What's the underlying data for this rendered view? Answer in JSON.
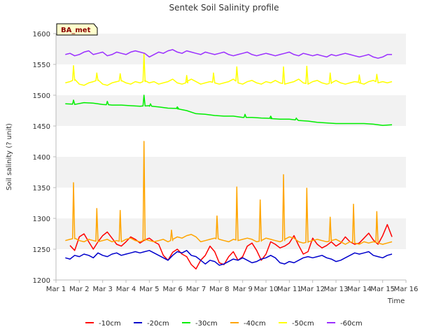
{
  "chart_data": {
    "type": "line",
    "title": "Sentek Soil Salinity profile",
    "xlabel": "Time",
    "ylabel": "Soil salinity (? unit)",
    "badge": "BA_met",
    "ylim": [
      1200,
      1600
    ],
    "yticks": [
      1200,
      1250,
      1300,
      1350,
      1400,
      1450,
      1500,
      1550,
      1600
    ],
    "xlim": [
      1,
      16
    ],
    "xticks": [
      1,
      2,
      3,
      4,
      5,
      6,
      7,
      8,
      9,
      10,
      11,
      12,
      13,
      14,
      15,
      16
    ],
    "xtick_labels": [
      "Mar 1",
      "Mar 2",
      "Mar 3",
      "Mar 4",
      "Mar 5",
      "Mar 6",
      "Mar 7",
      "Mar 8",
      "Mar 9",
      "Mar 10",
      "Mar 11",
      "Mar 12",
      "Mar 13",
      "Mar 14",
      "Mar 15",
      "Mar 16"
    ],
    "grid": "horizontal bands",
    "legend_position": "bottom",
    "series": [
      {
        "name": "-10cm",
        "color": "#ff0000",
        "x": [
          1.6,
          1.8,
          2.0,
          2.2,
          2.4,
          2.6,
          2.8,
          3.0,
          3.2,
          3.4,
          3.6,
          3.8,
          4.0,
          4.2,
          4.4,
          4.6,
          4.8,
          5.0,
          5.2,
          5.4,
          5.6,
          5.8,
          6.0,
          6.2,
          6.4,
          6.6,
          6.8,
          7.0,
          7.2,
          7.4,
          7.6,
          7.8,
          8.0,
          8.2,
          8.4,
          8.6,
          8.8,
          9.0,
          9.2,
          9.4,
          9.6,
          9.8,
          10.0,
          10.2,
          10.4,
          10.6,
          10.8,
          11.0,
          11.2,
          11.4,
          11.6,
          11.8,
          12.0,
          12.2,
          12.4,
          12.6,
          12.8,
          13.0,
          13.2,
          13.4,
          13.6,
          13.8,
          14.0,
          14.2,
          14.4,
          14.6,
          14.8,
          15.0,
          15.2,
          15.4
        ],
        "y": [
          1256,
          1248,
          1270,
          1275,
          1262,
          1250,
          1262,
          1272,
          1278,
          1268,
          1258,
          1255,
          1262,
          1270,
          1266,
          1260,
          1265,
          1268,
          1262,
          1258,
          1240,
          1232,
          1245,
          1250,
          1242,
          1238,
          1225,
          1218,
          1232,
          1240,
          1255,
          1246,
          1228,
          1225,
          1238,
          1246,
          1232,
          1238,
          1255,
          1260,
          1248,
          1232,
          1242,
          1262,
          1258,
          1252,
          1255,
          1260,
          1272,
          1256,
          1242,
          1246,
          1268,
          1258,
          1252,
          1256,
          1262,
          1255,
          1260,
          1270,
          1262,
          1258,
          1260,
          1268,
          1276,
          1265,
          1258,
          1272,
          1290,
          1270
        ],
        "spikes": []
      },
      {
        "name": "-20cm",
        "color": "#0000cc",
        "x": [
          1.4,
          1.6,
          1.8,
          2.0,
          2.2,
          2.4,
          2.6,
          2.8,
          3.0,
          3.2,
          3.4,
          3.6,
          3.8,
          4.0,
          4.2,
          4.4,
          4.6,
          4.8,
          5.0,
          5.2,
          5.4,
          5.6,
          5.8,
          6.0,
          6.2,
          6.4,
          6.6,
          6.8,
          7.0,
          7.2,
          7.4,
          7.6,
          7.8,
          8.0,
          8.2,
          8.4,
          8.6,
          8.8,
          9.0,
          9.2,
          9.4,
          9.6,
          9.8,
          10.0,
          10.2,
          10.4,
          10.6,
          10.8,
          11.0,
          11.2,
          11.4,
          11.6,
          11.8,
          12.0,
          12.2,
          12.4,
          12.6,
          12.8,
          13.0,
          13.2,
          13.4,
          13.6,
          13.8,
          14.0,
          14.2,
          14.4,
          14.6,
          14.8,
          15.0,
          15.2,
          15.4
        ],
        "y": [
          1236,
          1234,
          1240,
          1238,
          1242,
          1240,
          1236,
          1244,
          1240,
          1238,
          1242,
          1244,
          1240,
          1242,
          1244,
          1246,
          1244,
          1246,
          1248,
          1244,
          1240,
          1236,
          1232,
          1240,
          1246,
          1244,
          1248,
          1240,
          1238,
          1232,
          1226,
          1232,
          1230,
          1224,
          1226,
          1230,
          1234,
          1232,
          1236,
          1232,
          1228,
          1230,
          1234,
          1236,
          1240,
          1236,
          1228,
          1226,
          1230,
          1228,
          1232,
          1236,
          1238,
          1236,
          1238,
          1240,
          1236,
          1234,
          1230,
          1232,
          1236,
          1240,
          1244,
          1242,
          1244,
          1246,
          1240,
          1238,
          1236,
          1240,
          1242
        ],
        "spikes": []
      },
      {
        "name": "-30cm",
        "color": "#00ee00",
        "x": [
          1.4,
          1.8,
          2.2,
          2.6,
          3.0,
          3.4,
          3.8,
          4.2,
          4.6,
          5.0,
          5.4,
          5.8,
          6.2,
          6.6,
          7.0,
          7.4,
          7.8,
          8.2,
          8.6,
          9.0,
          9.4,
          9.8,
          10.2,
          10.6,
          11.0,
          11.4,
          11.8,
          12.2,
          12.6,
          13.0,
          13.4,
          13.8,
          14.2,
          14.6,
          15.0,
          15.4
        ],
        "y": [
          1486,
          1485,
          1488,
          1487,
          1485,
          1484,
          1484,
          1483,
          1482,
          1483,
          1481,
          1479,
          1478,
          1475,
          1470,
          1469,
          1467,
          1466,
          1466,
          1464,
          1464,
          1463,
          1462,
          1461,
          1461,
          1459,
          1458,
          1456,
          1455,
          1454,
          1454,
          1454,
          1454,
          1453,
          1451,
          1452
        ],
        "spikes": [
          [
            1.75,
            1492
          ],
          [
            3.2,
            1490
          ],
          [
            4.77,
            1500
          ],
          [
            5.05,
            1486
          ],
          [
            6.2,
            1481
          ],
          [
            9.1,
            1469
          ],
          [
            10.2,
            1466
          ],
          [
            11.3,
            1463
          ]
        ]
      },
      {
        "name": "-40cm",
        "color": "#ffa500",
        "x": [
          1.4,
          1.6,
          1.8,
          2.0,
          2.2,
          2.4,
          2.6,
          2.8,
          3.0,
          3.2,
          3.4,
          3.6,
          3.8,
          4.0,
          4.2,
          4.4,
          4.6,
          4.8,
          5.0,
          5.2,
          5.4,
          5.6,
          5.8,
          6.0,
          6.2,
          6.4,
          6.6,
          6.8,
          7.0,
          7.2,
          7.4,
          7.6,
          7.8,
          8.0,
          8.2,
          8.4,
          8.6,
          8.8,
          9.0,
          9.2,
          9.4,
          9.6,
          9.8,
          10.0,
          10.2,
          10.4,
          10.6,
          10.8,
          11.0,
          11.2,
          11.4,
          11.6,
          11.8,
          12.0,
          12.2,
          12.4,
          12.6,
          12.8,
          13.0,
          13.2,
          13.4,
          13.6,
          13.8,
          14.0,
          14.2,
          14.4,
          14.6,
          14.8,
          15.0,
          15.2,
          15.4
        ],
        "y": [
          1264,
          1266,
          1268,
          1264,
          1262,
          1266,
          1264,
          1262,
          1264,
          1266,
          1262,
          1264,
          1262,
          1266,
          1268,
          1264,
          1262,
          1266,
          1264,
          1262,
          1264,
          1266,
          1262,
          1266,
          1270,
          1268,
          1272,
          1274,
          1270,
          1262,
          1264,
          1266,
          1268,
          1266,
          1264,
          1262,
          1266,
          1264,
          1266,
          1268,
          1266,
          1262,
          1264,
          1268,
          1266,
          1264,
          1262,
          1266,
          1270,
          1268,
          1262,
          1260,
          1262,
          1264,
          1266,
          1264,
          1262,
          1264,
          1266,
          1262,
          1258,
          1262,
          1260,
          1258,
          1262,
          1260,
          1262,
          1260,
          1258,
          1260,
          1262
        ],
        "spikes": [
          [
            1.75,
            1358
          ],
          [
            2.75,
            1316
          ],
          [
            3.75,
            1313
          ],
          [
            4.77,
            1425
          ],
          [
            5.95,
            1281
          ],
          [
            7.9,
            1304
          ],
          [
            8.75,
            1351
          ],
          [
            9.75,
            1330
          ],
          [
            10.75,
            1371
          ],
          [
            11.75,
            1349
          ],
          [
            12.75,
            1302
          ],
          [
            13.75,
            1323
          ],
          [
            14.75,
            1311
          ]
        ]
      },
      {
        "name": "-50cm",
        "color": "#ffff00",
        "x": [
          1.4,
          1.6,
          1.8,
          2.0,
          2.2,
          2.4,
          2.6,
          2.8,
          3.0,
          3.2,
          3.4,
          3.6,
          3.8,
          4.0,
          4.2,
          4.4,
          4.6,
          4.8,
          5.0,
          5.2,
          5.4,
          5.6,
          5.8,
          6.0,
          6.2,
          6.4,
          6.6,
          6.8,
          7.0,
          7.2,
          7.4,
          7.6,
          7.8,
          8.0,
          8.2,
          8.4,
          8.6,
          8.8,
          9.0,
          9.2,
          9.4,
          9.6,
          9.8,
          10.0,
          10.2,
          10.4,
          10.6,
          10.8,
          11.0,
          11.2,
          11.4,
          11.6,
          11.8,
          12.0,
          12.2,
          12.4,
          12.6,
          12.8,
          13.0,
          13.2,
          13.4,
          13.6,
          13.8,
          14.0,
          14.2,
          14.4,
          14.6,
          14.8,
          15.0,
          15.2,
          15.4
        ],
        "y": [
          1520,
          1522,
          1526,
          1518,
          1516,
          1520,
          1522,
          1525,
          1518,
          1516,
          1520,
          1522,
          1524,
          1520,
          1518,
          1522,
          1520,
          1524,
          1520,
          1522,
          1518,
          1520,
          1522,
          1526,
          1520,
          1518,
          1522,
          1526,
          1522,
          1518,
          1520,
          1522,
          1520,
          1518,
          1520,
          1522,
          1526,
          1520,
          1518,
          1522,
          1524,
          1520,
          1518,
          1522,
          1520,
          1524,
          1520,
          1518,
          1520,
          1522,
          1526,
          1520,
          1518,
          1522,
          1524,
          1520,
          1518,
          1520,
          1524,
          1520,
          1518,
          1520,
          1522,
          1520,
          1518,
          1522,
          1524,
          1520,
          1522,
          1520,
          1522
        ],
        "spikes": [
          [
            1.75,
            1548
          ],
          [
            2.75,
            1536
          ],
          [
            3.75,
            1535
          ],
          [
            4.77,
            1567
          ],
          [
            6.6,
            1532
          ],
          [
            7.75,
            1536
          ],
          [
            8.75,
            1546
          ],
          [
            10.75,
            1546
          ],
          [
            11.75,
            1547
          ],
          [
            12.75,
            1536
          ],
          [
            14.0,
            1533
          ],
          [
            14.75,
            1534
          ]
        ]
      },
      {
        "name": "-60cm",
        "color": "#9b30ff",
        "x": [
          1.4,
          1.6,
          1.8,
          2.0,
          2.2,
          2.4,
          2.6,
          2.8,
          3.0,
          3.2,
          3.4,
          3.6,
          3.8,
          4.0,
          4.2,
          4.4,
          4.6,
          4.8,
          5.0,
          5.2,
          5.4,
          5.6,
          5.8,
          6.0,
          6.2,
          6.4,
          6.6,
          6.8,
          7.0,
          7.2,
          7.4,
          7.6,
          7.8,
          8.0,
          8.2,
          8.4,
          8.6,
          8.8,
          9.0,
          9.2,
          9.4,
          9.6,
          9.8,
          10.0,
          10.2,
          10.4,
          10.6,
          10.8,
          11.0,
          11.2,
          11.4,
          11.6,
          11.8,
          12.0,
          12.2,
          12.4,
          12.6,
          12.8,
          13.0,
          13.2,
          13.4,
          13.6,
          13.8,
          14.0,
          14.2,
          14.4,
          14.6,
          14.8,
          15.0,
          15.2,
          15.4
        ],
        "y": [
          1566,
          1568,
          1564,
          1566,
          1570,
          1572,
          1566,
          1568,
          1570,
          1564,
          1566,
          1570,
          1568,
          1566,
          1570,
          1572,
          1570,
          1568,
          1562,
          1566,
          1570,
          1568,
          1572,
          1574,
          1570,
          1568,
          1572,
          1570,
          1568,
          1566,
          1570,
          1568,
          1566,
          1568,
          1570,
          1566,
          1564,
          1566,
          1568,
          1570,
          1566,
          1564,
          1566,
          1568,
          1566,
          1564,
          1566,
          1568,
          1570,
          1566,
          1564,
          1568,
          1566,
          1564,
          1566,
          1564,
          1562,
          1566,
          1564,
          1566,
          1568,
          1566,
          1564,
          1562,
          1564,
          1566,
          1562,
          1560,
          1562,
          1566,
          1566
        ],
        "spikes": []
      }
    ]
  }
}
